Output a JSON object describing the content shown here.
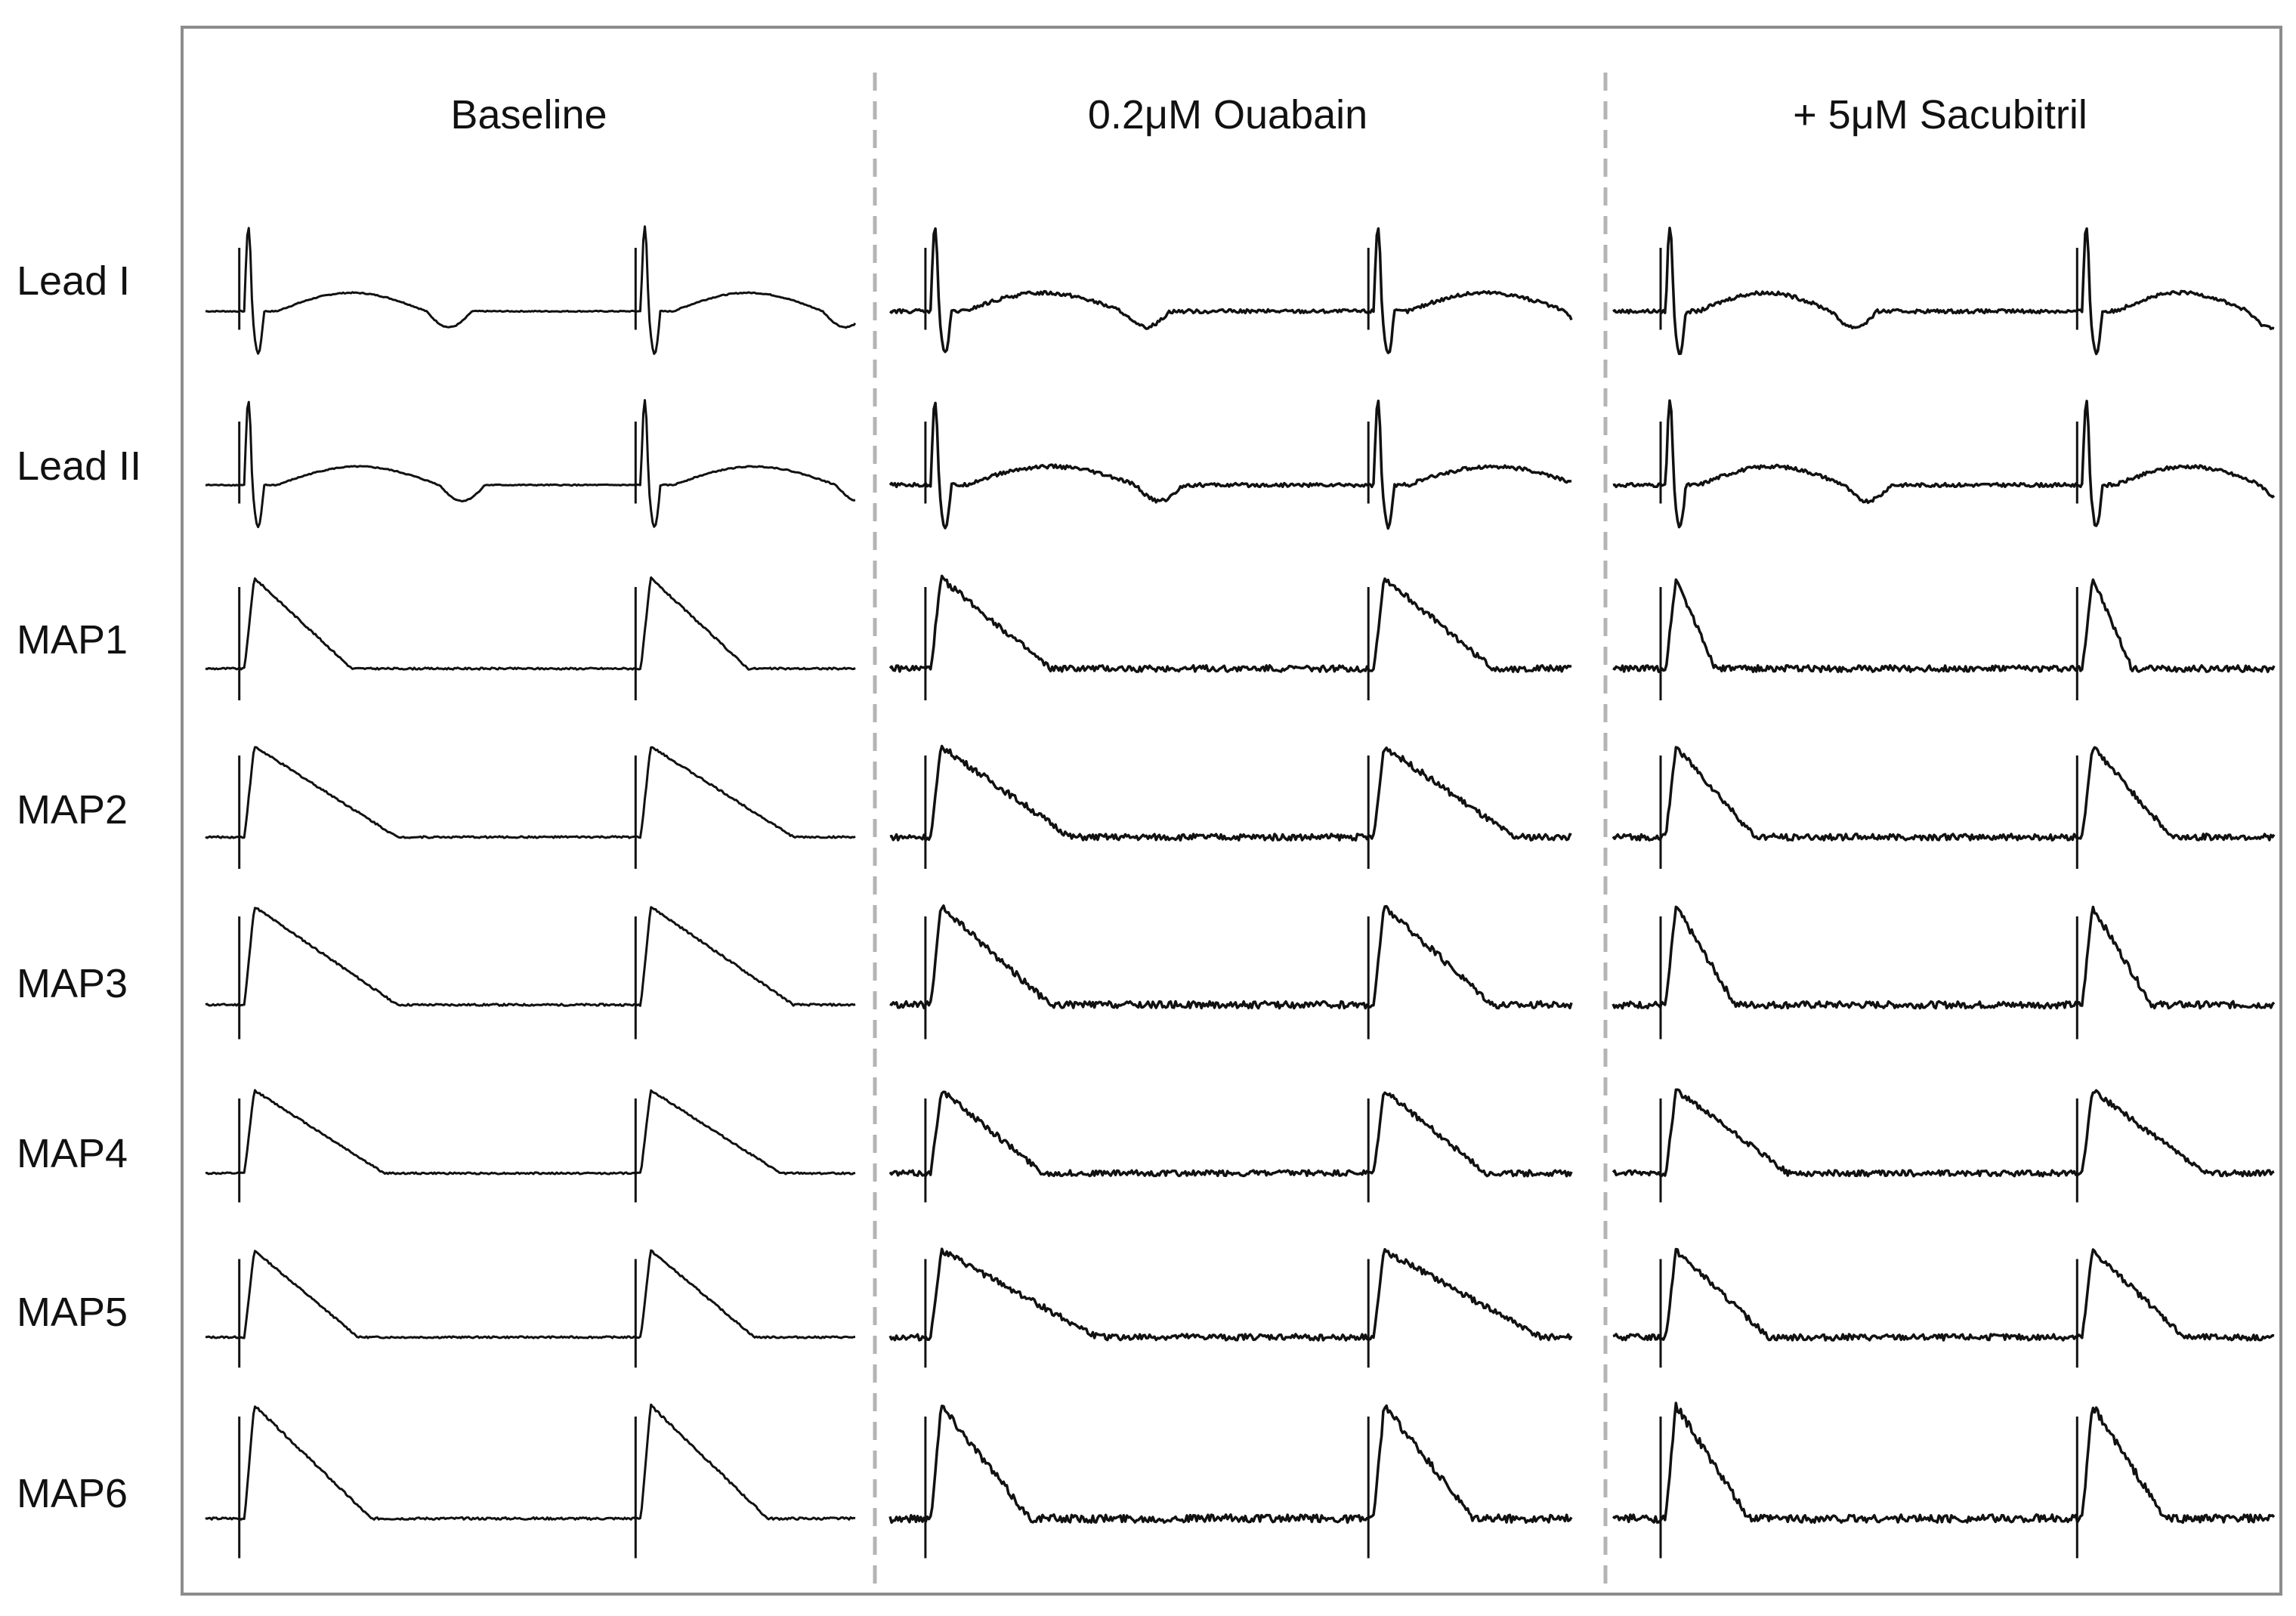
{
  "conditions": [
    {
      "label": "Baseline"
    },
    {
      "label": "0.2μM Ouabain"
    },
    {
      "label": "+ 5μM Sacubitril"
    }
  ],
  "rows": [
    {
      "label": "Lead I"
    },
    {
      "label": "Lead II"
    },
    {
      "label": "MAP1"
    },
    {
      "label": "MAP2"
    },
    {
      "label": "MAP3"
    },
    {
      "label": "MAP4"
    },
    {
      "label": "MAP5"
    },
    {
      "label": "MAP6"
    }
  ],
  "colors": {
    "trace": "#111111",
    "frame": "#8c8c8c",
    "divider": "#b4b4b4"
  },
  "chart_data": {
    "type": "line",
    "description_units": "normalized time (0-1 per panel), normalized amplitude",
    "panels": [
      "Baseline",
      "0.2μM Ouabain",
      "+ 5μM Sacubitril"
    ],
    "channels": [
      "Lead I",
      "Lead II",
      "MAP1",
      "MAP2",
      "MAP3",
      "MAP4",
      "MAP5",
      "MAP6"
    ],
    "beats_per_panel": 2,
    "beat_onsets": [
      [
        0.06,
        0.67
      ],
      [
        0.06,
        0.71
      ],
      [
        0.08,
        0.71
      ]
    ],
    "action_potential_duration_fraction": [
      [
        0.23,
        0.25,
        0.15,
        0.22,
        0.22,
        0.2,
        0.16,
        0.18
      ],
      [
        0.23,
        0.25,
        0.16,
        0.19,
        0.16,
        0.15,
        0.23,
        0.13
      ],
      [
        0.2,
        0.22,
        0.06,
        0.12,
        0.09,
        0.17,
        0.14,
        0.11
      ]
    ],
    "grid": false,
    "legend": "none"
  }
}
